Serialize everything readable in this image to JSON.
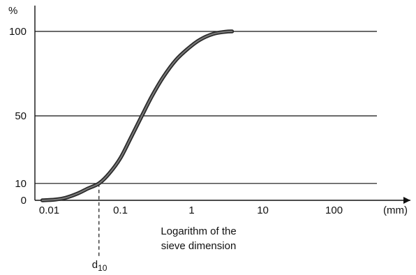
{
  "chart_data": {
    "type": "line",
    "xscale": "log",
    "x_ticks": [
      {
        "value": 0.01,
        "label": "0.01"
      },
      {
        "value": 0.1,
        "label": "0.1"
      },
      {
        "value": 1,
        "label": "1"
      },
      {
        "value": 10,
        "label": "10"
      },
      {
        "value": 100,
        "label": "100"
      }
    ],
    "x_unit": "(mm)",
    "y_unit": "%",
    "y_ticks": [
      {
        "value": 0,
        "label": "0"
      },
      {
        "value": 10,
        "label": "10"
      },
      {
        "value": 50,
        "label": "50"
      },
      {
        "value": 100,
        "label": "100"
      }
    ],
    "xlim": [
      0.0063,
      400
    ],
    "ylim": [
      0,
      100
    ],
    "horizontal_lines": [
      10,
      50,
      100
    ],
    "xlabel_lines": [
      "Logarithm of the",
      "sieve dimension"
    ],
    "marker": {
      "x": 0.05,
      "label_main": "d",
      "label_sub": "10"
    },
    "series": [
      {
        "x": [
          0.008,
          0.012,
          0.017,
          0.025,
          0.035,
          0.05,
          0.07,
          0.1,
          0.14,
          0.2,
          0.28,
          0.4,
          0.6,
          0.9,
          1.3,
          2.0,
          3.0,
          3.7
        ],
        "y": [
          0,
          0.4,
          1.5,
          4,
          7,
          10,
          16,
          25,
          37,
          50,
          62,
          73,
          83,
          90,
          95,
          98.5,
          99.8,
          100
        ]
      }
    ]
  }
}
